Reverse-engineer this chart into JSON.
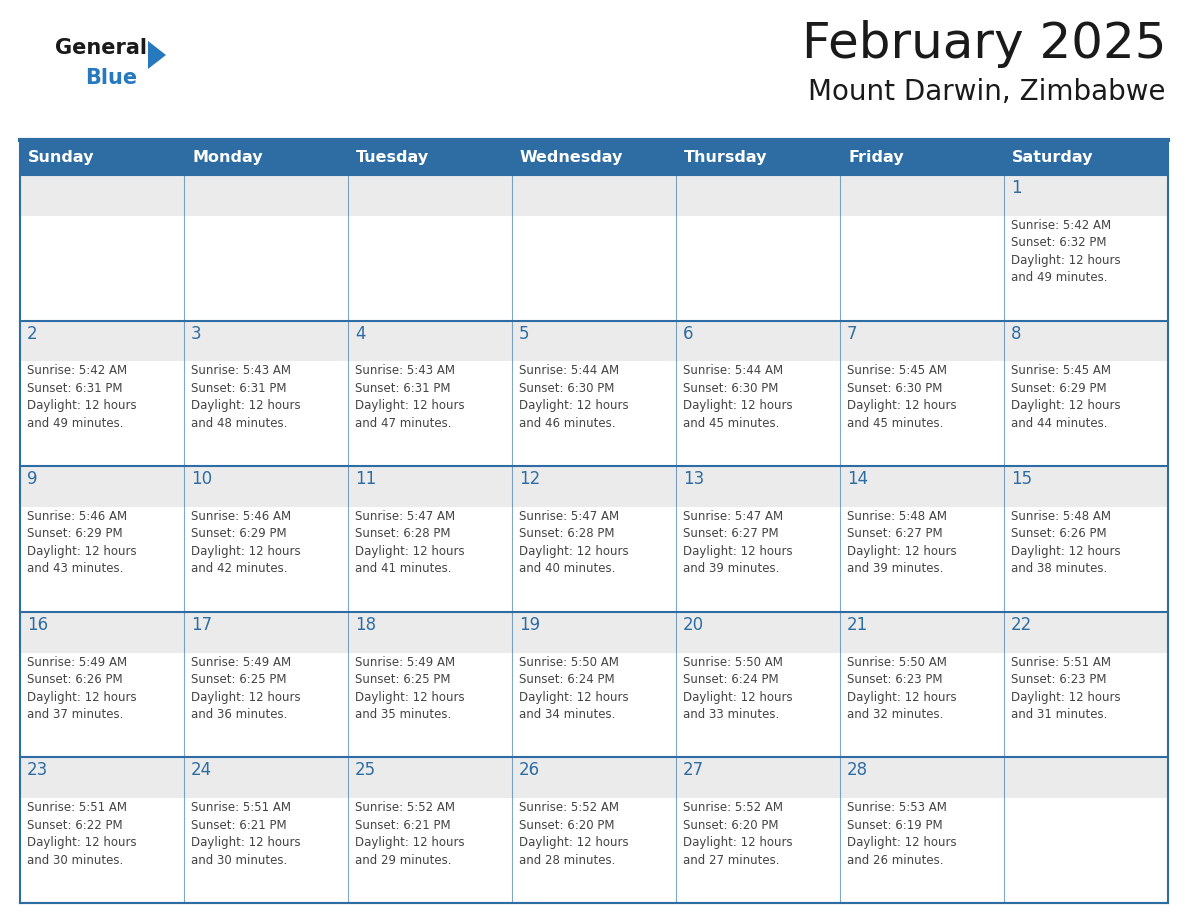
{
  "title": "February 2025",
  "subtitle": "Mount Darwin, Zimbabwe",
  "header_bg": "#2E6DA4",
  "header_text_color": "#FFFFFF",
  "cell_bg_gray": "#EBEBEB",
  "cell_bg_white": "#FFFFFF",
  "text_color": "#444444",
  "day_number_color": "#2E6DA4",
  "border_color": "#2E6DA4",
  "days_of_week": [
    "Sunday",
    "Monday",
    "Tuesday",
    "Wednesday",
    "Thursday",
    "Friday",
    "Saturday"
  ],
  "calendar_data": [
    [
      {
        "day": "",
        "info": ""
      },
      {
        "day": "",
        "info": ""
      },
      {
        "day": "",
        "info": ""
      },
      {
        "day": "",
        "info": ""
      },
      {
        "day": "",
        "info": ""
      },
      {
        "day": "",
        "info": ""
      },
      {
        "day": "1",
        "info": "Sunrise: 5:42 AM\nSunset: 6:32 PM\nDaylight: 12 hours\nand 49 minutes."
      }
    ],
    [
      {
        "day": "2",
        "info": "Sunrise: 5:42 AM\nSunset: 6:31 PM\nDaylight: 12 hours\nand 49 minutes."
      },
      {
        "day": "3",
        "info": "Sunrise: 5:43 AM\nSunset: 6:31 PM\nDaylight: 12 hours\nand 48 minutes."
      },
      {
        "day": "4",
        "info": "Sunrise: 5:43 AM\nSunset: 6:31 PM\nDaylight: 12 hours\nand 47 minutes."
      },
      {
        "day": "5",
        "info": "Sunrise: 5:44 AM\nSunset: 6:30 PM\nDaylight: 12 hours\nand 46 minutes."
      },
      {
        "day": "6",
        "info": "Sunrise: 5:44 AM\nSunset: 6:30 PM\nDaylight: 12 hours\nand 45 minutes."
      },
      {
        "day": "7",
        "info": "Sunrise: 5:45 AM\nSunset: 6:30 PM\nDaylight: 12 hours\nand 45 minutes."
      },
      {
        "day": "8",
        "info": "Sunrise: 5:45 AM\nSunset: 6:29 PM\nDaylight: 12 hours\nand 44 minutes."
      }
    ],
    [
      {
        "day": "9",
        "info": "Sunrise: 5:46 AM\nSunset: 6:29 PM\nDaylight: 12 hours\nand 43 minutes."
      },
      {
        "day": "10",
        "info": "Sunrise: 5:46 AM\nSunset: 6:29 PM\nDaylight: 12 hours\nand 42 minutes."
      },
      {
        "day": "11",
        "info": "Sunrise: 5:47 AM\nSunset: 6:28 PM\nDaylight: 12 hours\nand 41 minutes."
      },
      {
        "day": "12",
        "info": "Sunrise: 5:47 AM\nSunset: 6:28 PM\nDaylight: 12 hours\nand 40 minutes."
      },
      {
        "day": "13",
        "info": "Sunrise: 5:47 AM\nSunset: 6:27 PM\nDaylight: 12 hours\nand 39 minutes."
      },
      {
        "day": "14",
        "info": "Sunrise: 5:48 AM\nSunset: 6:27 PM\nDaylight: 12 hours\nand 39 minutes."
      },
      {
        "day": "15",
        "info": "Sunrise: 5:48 AM\nSunset: 6:26 PM\nDaylight: 12 hours\nand 38 minutes."
      }
    ],
    [
      {
        "day": "16",
        "info": "Sunrise: 5:49 AM\nSunset: 6:26 PM\nDaylight: 12 hours\nand 37 minutes."
      },
      {
        "day": "17",
        "info": "Sunrise: 5:49 AM\nSunset: 6:25 PM\nDaylight: 12 hours\nand 36 minutes."
      },
      {
        "day": "18",
        "info": "Sunrise: 5:49 AM\nSunset: 6:25 PM\nDaylight: 12 hours\nand 35 minutes."
      },
      {
        "day": "19",
        "info": "Sunrise: 5:50 AM\nSunset: 6:24 PM\nDaylight: 12 hours\nand 34 minutes."
      },
      {
        "day": "20",
        "info": "Sunrise: 5:50 AM\nSunset: 6:24 PM\nDaylight: 12 hours\nand 33 minutes."
      },
      {
        "day": "21",
        "info": "Sunrise: 5:50 AM\nSunset: 6:23 PM\nDaylight: 12 hours\nand 32 minutes."
      },
      {
        "day": "22",
        "info": "Sunrise: 5:51 AM\nSunset: 6:23 PM\nDaylight: 12 hours\nand 31 minutes."
      }
    ],
    [
      {
        "day": "23",
        "info": "Sunrise: 5:51 AM\nSunset: 6:22 PM\nDaylight: 12 hours\nand 30 minutes."
      },
      {
        "day": "24",
        "info": "Sunrise: 5:51 AM\nSunset: 6:21 PM\nDaylight: 12 hours\nand 30 minutes."
      },
      {
        "day": "25",
        "info": "Sunrise: 5:52 AM\nSunset: 6:21 PM\nDaylight: 12 hours\nand 29 minutes."
      },
      {
        "day": "26",
        "info": "Sunrise: 5:52 AM\nSunset: 6:20 PM\nDaylight: 12 hours\nand 28 minutes."
      },
      {
        "day": "27",
        "info": "Sunrise: 5:52 AM\nSunset: 6:20 PM\nDaylight: 12 hours\nand 27 minutes."
      },
      {
        "day": "28",
        "info": "Sunrise: 5:53 AM\nSunset: 6:19 PM\nDaylight: 12 hours\nand 26 minutes."
      },
      {
        "day": "",
        "info": ""
      }
    ]
  ],
  "logo_text_general": "General",
  "logo_text_blue": "Blue",
  "logo_color_general": "#1A1A1A",
  "logo_color_blue": "#2779BD",
  "logo_triangle_color": "#2779BD"
}
